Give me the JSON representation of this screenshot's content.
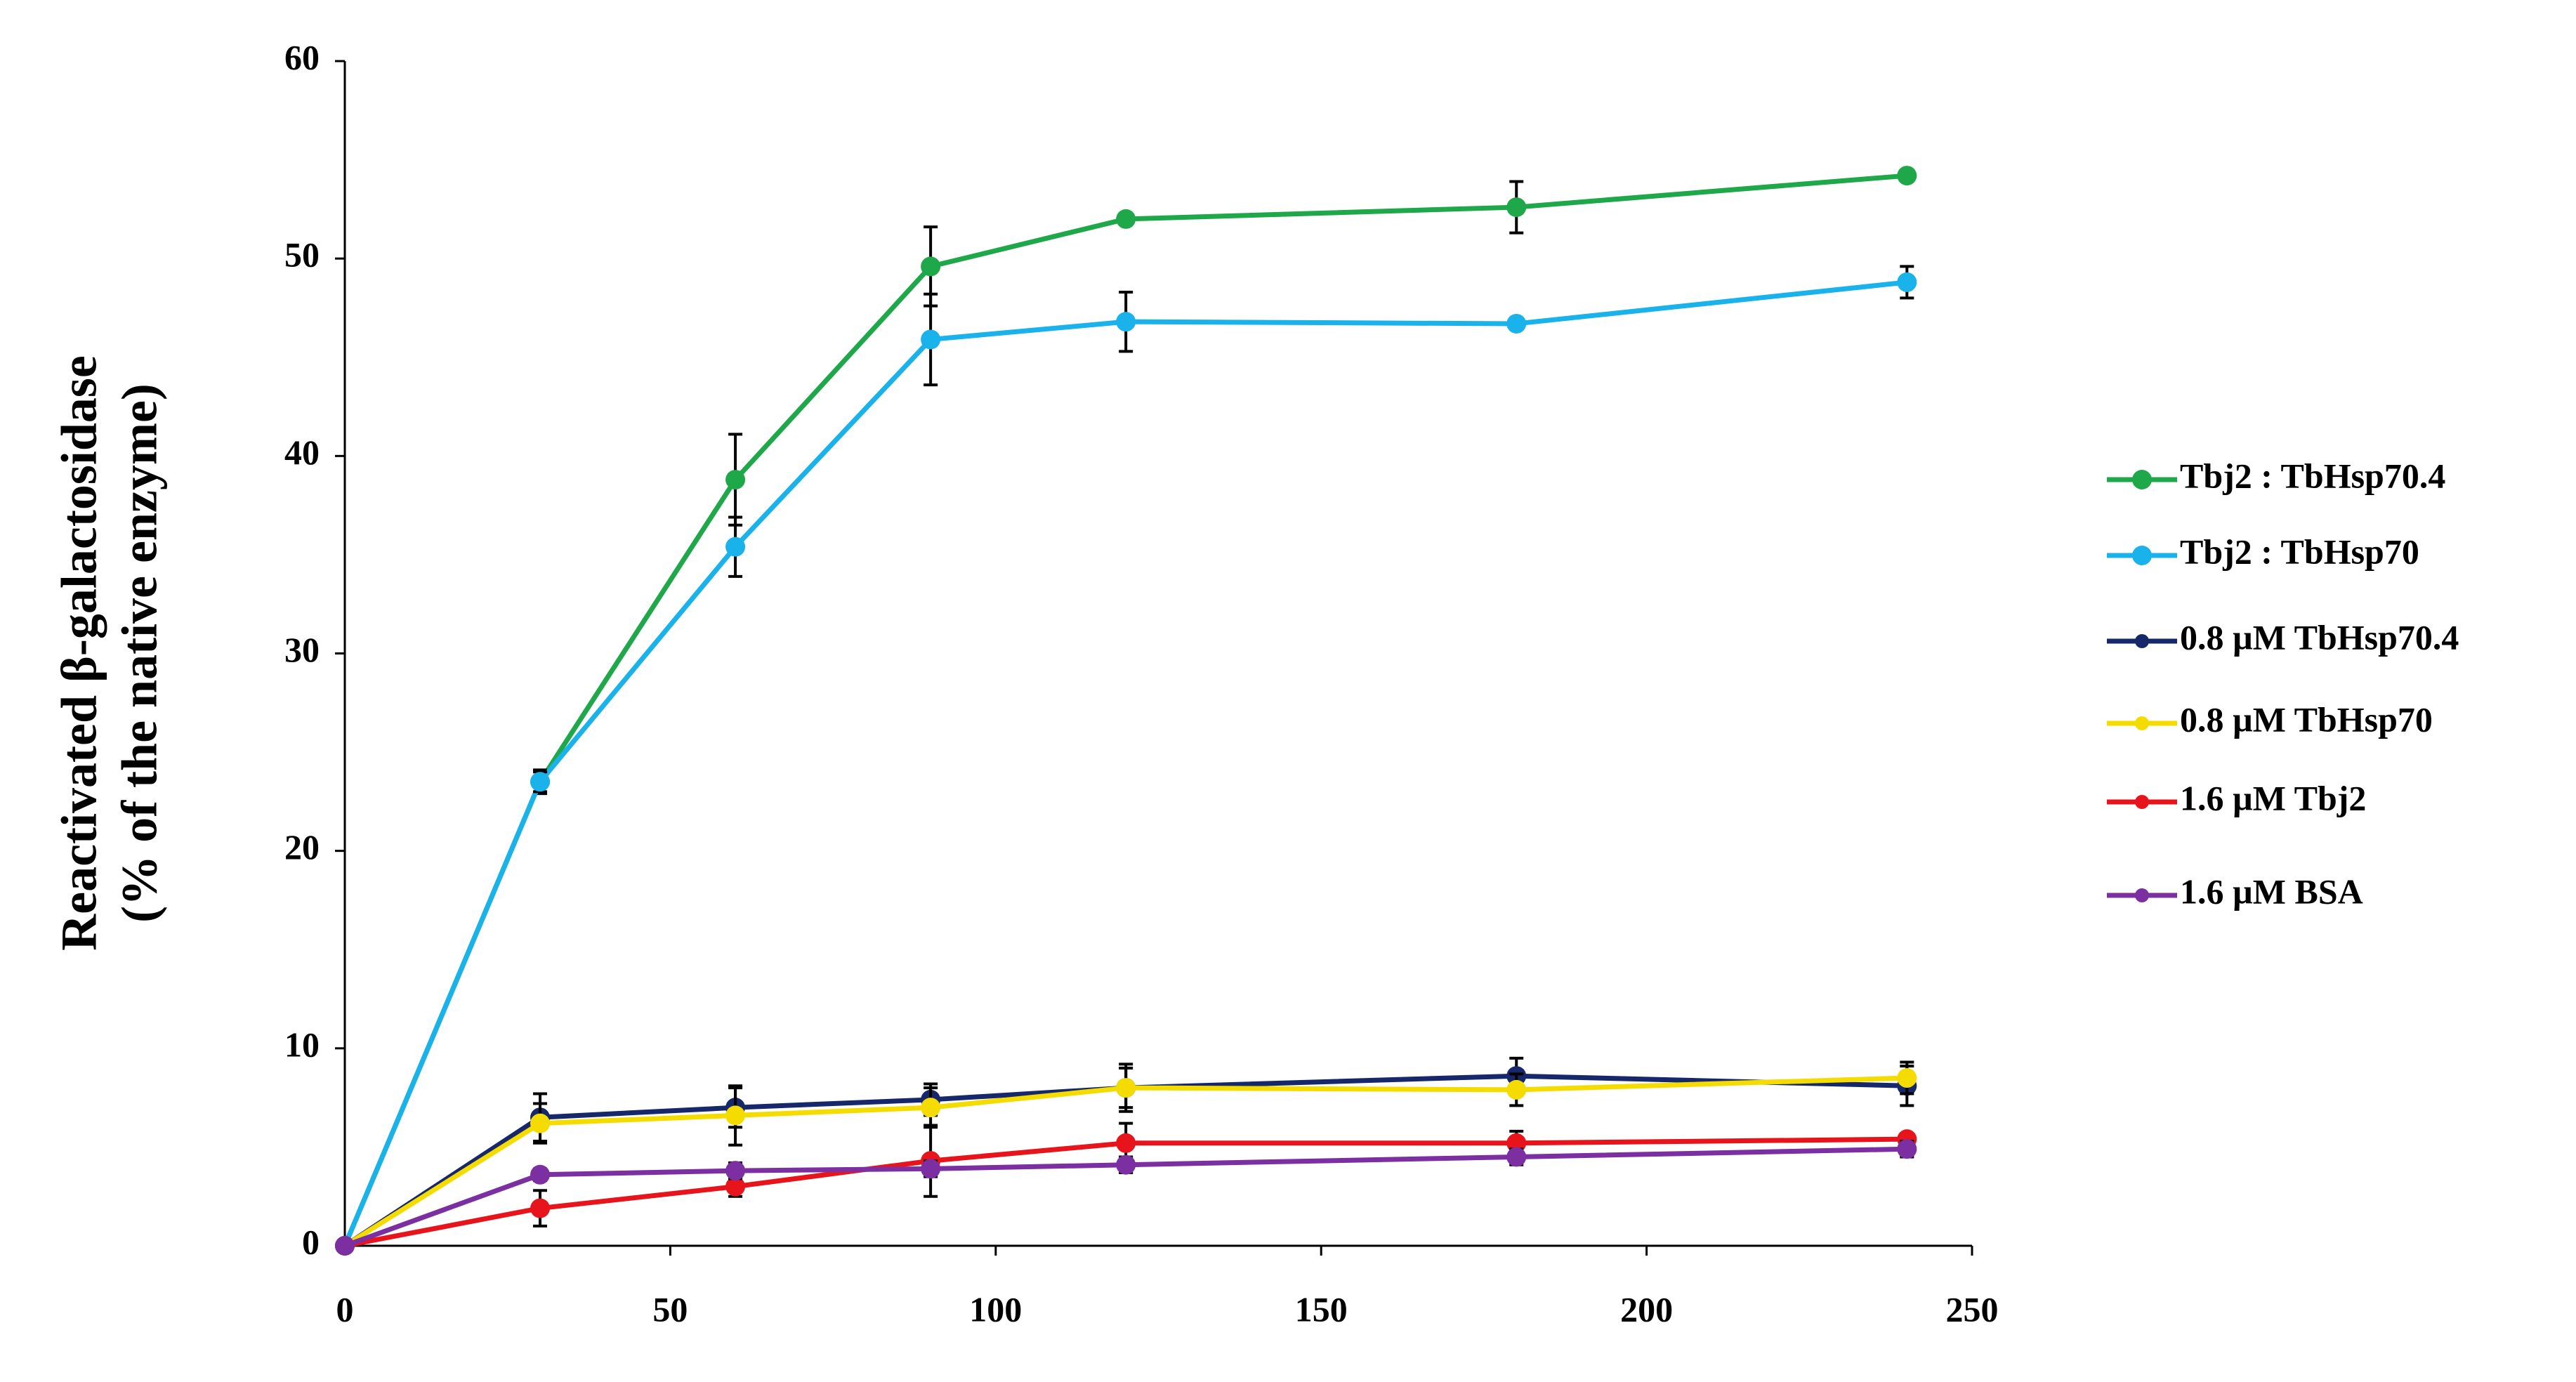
{
  "chart_data": {
    "type": "line",
    "y_label": [
      "Reactivated β-galactosidase",
      "(% of the native enzyme)"
    ],
    "x": [
      0,
      30,
      60,
      90,
      120,
      180,
      240
    ],
    "xlim": [
      0,
      250
    ],
    "xticks": [
      0,
      50,
      100,
      150,
      200,
      250
    ],
    "ylim": [
      0,
      60
    ],
    "yticks": [
      0,
      10,
      20,
      30,
      40,
      50,
      60
    ],
    "grid": false,
    "legend": "right",
    "series": [
      {
        "name": "Tbj2 : TbHsp70.4",
        "color": "#1fa84a",
        "values": [
          0,
          23.5,
          38.8,
          49.6,
          52.0,
          52.6,
          54.2
        ],
        "errors": [
          0,
          0.6,
          2.3,
          2.0,
          0,
          1.3,
          0
        ]
      },
      {
        "name": "Tbj2 : TbHsp70",
        "color": "#1ab2ea",
        "values": [
          0,
          23.5,
          35.4,
          45.9,
          46.8,
          46.7,
          48.8
        ],
        "errors": [
          0,
          0.5,
          1.5,
          2.3,
          1.5,
          0,
          0.8
        ]
      },
      {
        "name": "0.8 µM TbHsp70.4",
        "color": "#16286a",
        "values": [
          0,
          6.5,
          7.0,
          7.4,
          8.0,
          8.6,
          8.1
        ],
        "errors": [
          0,
          1.2,
          1.0,
          0.8,
          1.2,
          0.9,
          1.0
        ]
      },
      {
        "name": "0.8 µM TbHsp70",
        "color": "#f5dc00",
        "values": [
          0,
          6.2,
          6.6,
          7.0,
          8.0,
          7.9,
          8.5
        ],
        "errors": [
          0,
          1.0,
          1.5,
          1.0,
          1.0,
          0.8,
          0.8
        ]
      },
      {
        "name": "1.6 µM Tbj2",
        "color": "#e8141b",
        "values": [
          0,
          1.9,
          3.0,
          4.3,
          5.2,
          5.2,
          5.4
        ],
        "errors": [
          0,
          0.9,
          0.5,
          1.8,
          1.0,
          0.6,
          0
        ]
      },
      {
        "name": "1.6 µM BSA",
        "color": "#7b2fa0",
        "values": [
          0,
          3.6,
          3.8,
          3.9,
          4.1,
          4.5,
          4.9
        ],
        "errors": [
          0,
          0.3,
          0.4,
          0.4,
          0.4,
          0.4,
          0.4
        ]
      }
    ]
  }
}
